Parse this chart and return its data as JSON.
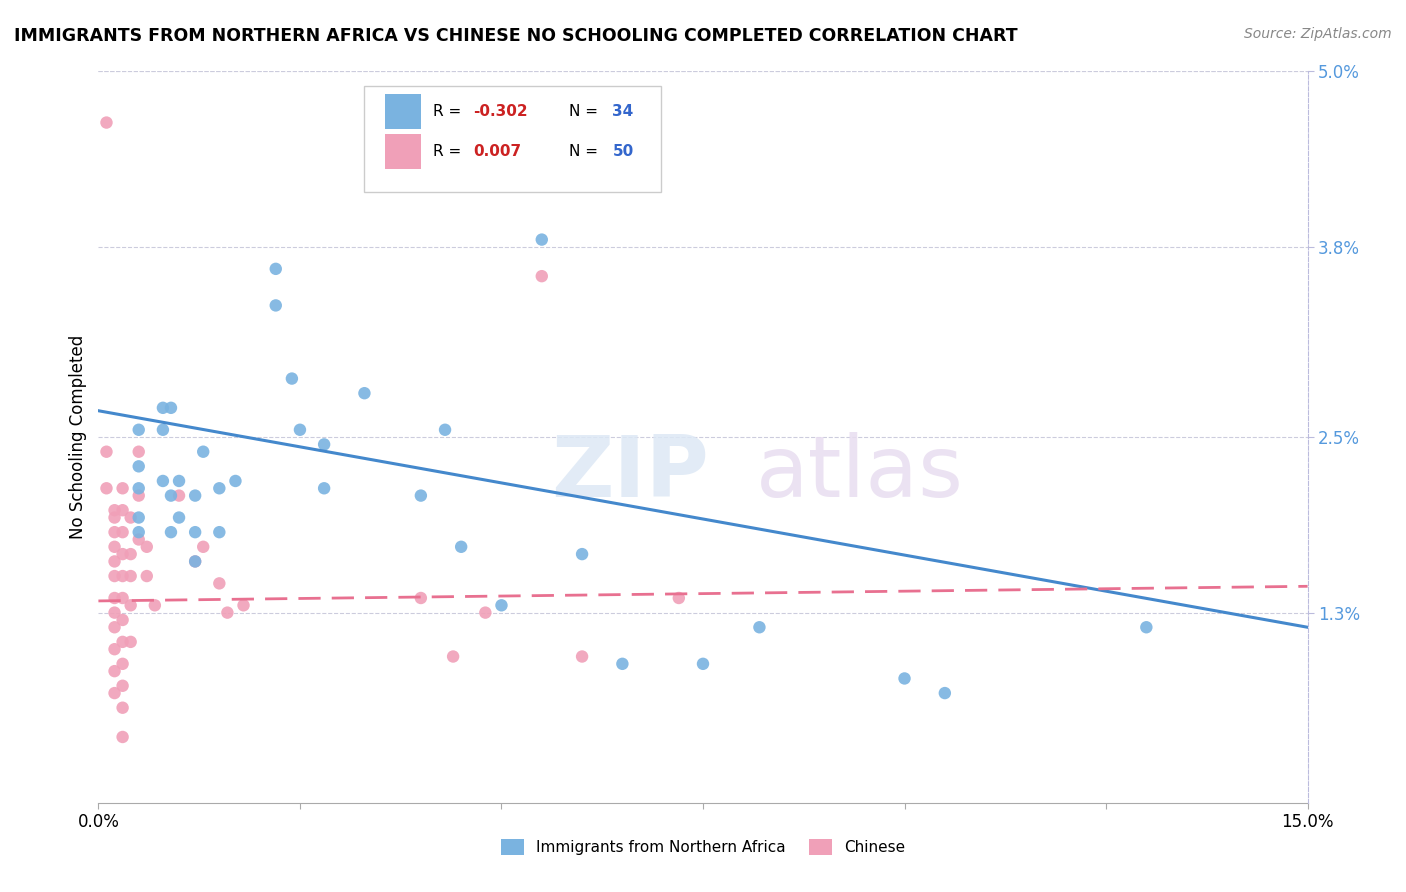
{
  "title": "IMMIGRANTS FROM NORTHERN AFRICA VS CHINESE NO SCHOOLING COMPLETED CORRELATION CHART",
  "source": "Source: ZipAtlas.com",
  "ylabel": "No Schooling Completed",
  "xlim": [
    0.0,
    0.15
  ],
  "ylim": [
    0.0,
    0.05
  ],
  "xticks": [
    0.0,
    0.025,
    0.05,
    0.075,
    0.1,
    0.125,
    0.15
  ],
  "xtick_labels": [
    "0.0%",
    "",
    "",
    "",
    "",
    "",
    "15.0%"
  ],
  "right_yticks": [
    0.013,
    0.025,
    0.038,
    0.05
  ],
  "right_ytick_labels": [
    "1.3%",
    "2.5%",
    "3.8%",
    "5.0%"
  ],
  "bottom_legend": [
    "Immigrants from Northern Africa",
    "Chinese"
  ],
  "blue_color": "#7ab3e0",
  "pink_color": "#f0a0b8",
  "line_blue": "#4488cc",
  "line_pink": "#e87090",
  "blue_scatter": [
    [
      0.005,
      0.0255
    ],
    [
      0.005,
      0.023
    ],
    [
      0.005,
      0.0215
    ],
    [
      0.005,
      0.0195
    ],
    [
      0.005,
      0.0185
    ],
    [
      0.008,
      0.027
    ],
    [
      0.008,
      0.0255
    ],
    [
      0.008,
      0.022
    ],
    [
      0.009,
      0.027
    ],
    [
      0.009,
      0.021
    ],
    [
      0.009,
      0.0185
    ],
    [
      0.01,
      0.022
    ],
    [
      0.01,
      0.0195
    ],
    [
      0.012,
      0.021
    ],
    [
      0.012,
      0.0185
    ],
    [
      0.012,
      0.0165
    ],
    [
      0.013,
      0.024
    ],
    [
      0.015,
      0.0215
    ],
    [
      0.015,
      0.0185
    ],
    [
      0.017,
      0.022
    ],
    [
      0.022,
      0.0365
    ],
    [
      0.022,
      0.034
    ],
    [
      0.024,
      0.029
    ],
    [
      0.025,
      0.0255
    ],
    [
      0.028,
      0.0245
    ],
    [
      0.028,
      0.0215
    ],
    [
      0.033,
      0.028
    ],
    [
      0.04,
      0.021
    ],
    [
      0.043,
      0.0255
    ],
    [
      0.045,
      0.0175
    ],
    [
      0.05,
      0.0135
    ],
    [
      0.055,
      0.0385
    ],
    [
      0.06,
      0.017
    ],
    [
      0.065,
      0.0095
    ],
    [
      0.075,
      0.0095
    ],
    [
      0.082,
      0.012
    ],
    [
      0.1,
      0.0085
    ],
    [
      0.105,
      0.0075
    ],
    [
      0.13,
      0.012
    ]
  ],
  "pink_scatter": [
    [
      0.001,
      0.0465
    ],
    [
      0.001,
      0.024
    ],
    [
      0.001,
      0.0215
    ],
    [
      0.002,
      0.02
    ],
    [
      0.002,
      0.0195
    ],
    [
      0.002,
      0.0185
    ],
    [
      0.002,
      0.0175
    ],
    [
      0.002,
      0.0165
    ],
    [
      0.002,
      0.0155
    ],
    [
      0.002,
      0.014
    ],
    [
      0.002,
      0.013
    ],
    [
      0.002,
      0.012
    ],
    [
      0.002,
      0.0105
    ],
    [
      0.002,
      0.009
    ],
    [
      0.002,
      0.0075
    ],
    [
      0.003,
      0.0215
    ],
    [
      0.003,
      0.02
    ],
    [
      0.003,
      0.0185
    ],
    [
      0.003,
      0.017
    ],
    [
      0.003,
      0.0155
    ],
    [
      0.003,
      0.014
    ],
    [
      0.003,
      0.0125
    ],
    [
      0.003,
      0.011
    ],
    [
      0.003,
      0.0095
    ],
    [
      0.003,
      0.008
    ],
    [
      0.003,
      0.0065
    ],
    [
      0.003,
      0.0045
    ],
    [
      0.004,
      0.0195
    ],
    [
      0.004,
      0.017
    ],
    [
      0.004,
      0.0155
    ],
    [
      0.004,
      0.0135
    ],
    [
      0.004,
      0.011
    ],
    [
      0.005,
      0.024
    ],
    [
      0.005,
      0.021
    ],
    [
      0.005,
      0.018
    ],
    [
      0.006,
      0.0175
    ],
    [
      0.006,
      0.0155
    ],
    [
      0.007,
      0.0135
    ],
    [
      0.01,
      0.021
    ],
    [
      0.012,
      0.0165
    ],
    [
      0.013,
      0.0175
    ],
    [
      0.015,
      0.015
    ],
    [
      0.016,
      0.013
    ],
    [
      0.018,
      0.0135
    ],
    [
      0.04,
      0.014
    ],
    [
      0.044,
      0.01
    ],
    [
      0.048,
      0.013
    ],
    [
      0.055,
      0.036
    ],
    [
      0.06,
      0.01
    ],
    [
      0.072,
      0.014
    ]
  ],
  "blue_line_x": [
    0.0,
    0.15
  ],
  "blue_line_y": [
    0.0268,
    0.012
  ],
  "pink_line_x": [
    0.0,
    0.15
  ],
  "pink_line_y": [
    0.0138,
    0.0148
  ]
}
